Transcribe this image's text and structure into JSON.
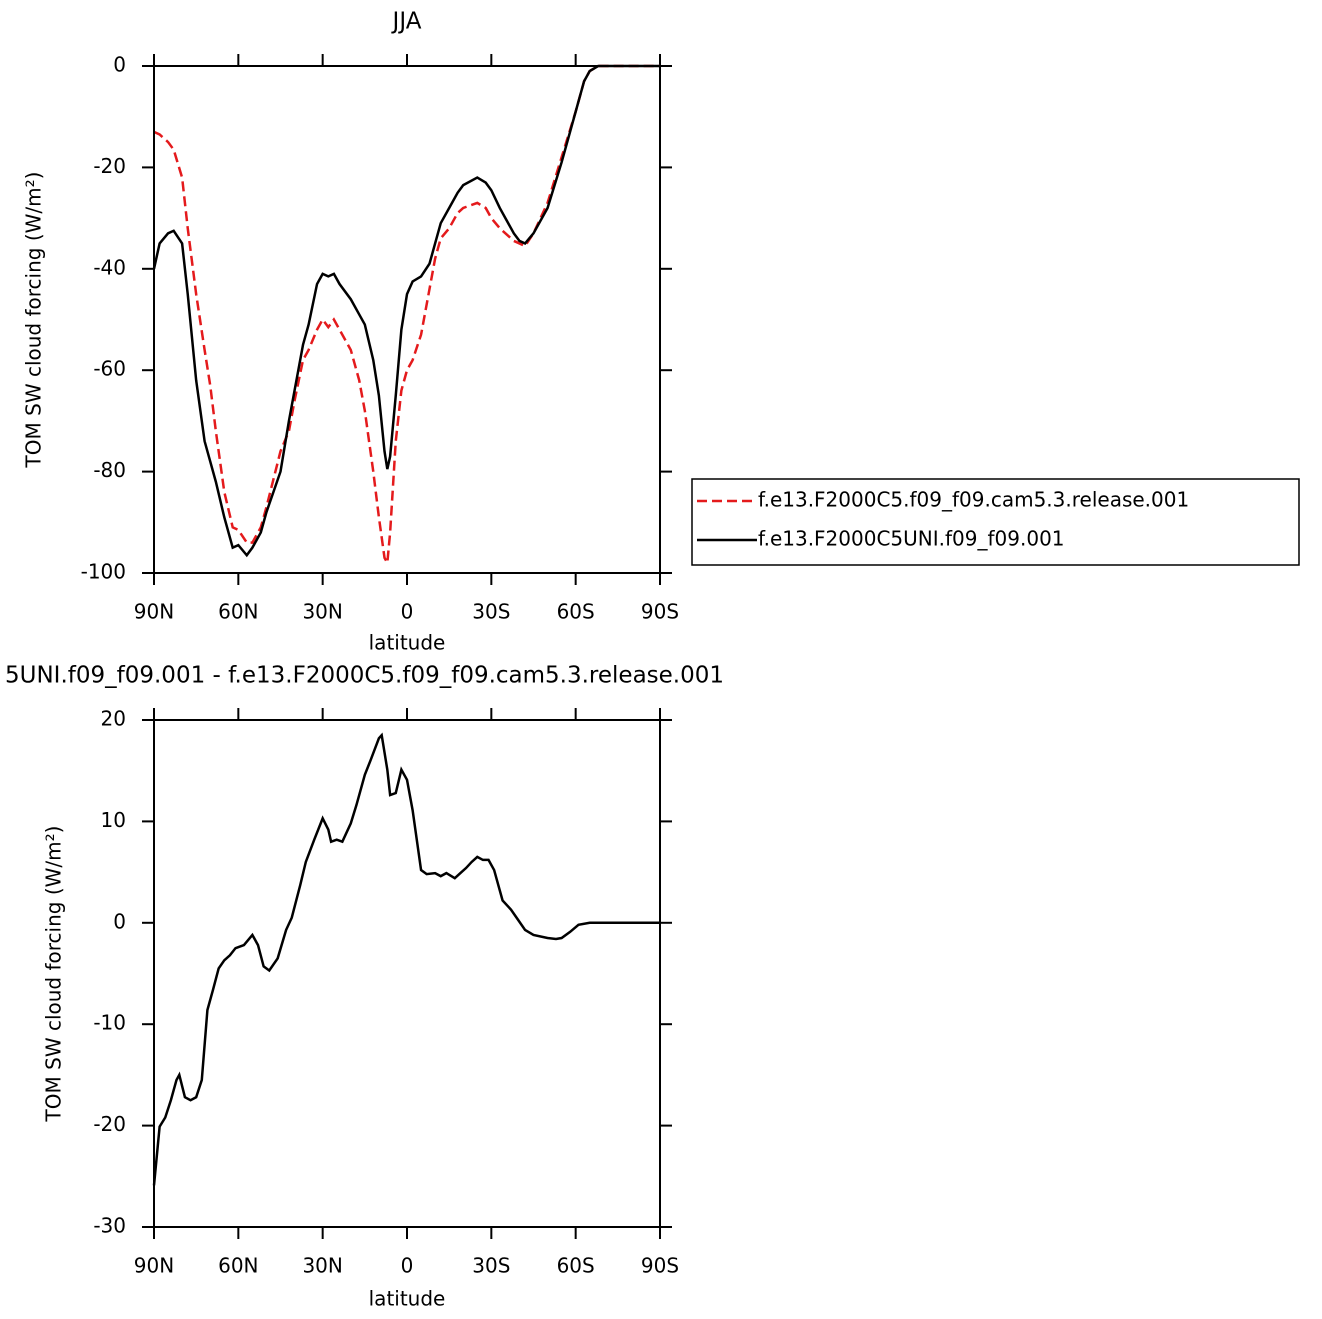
{
  "chart_data": [
    {
      "type": "line",
      "title": "JJA",
      "xlabel": "latitude",
      "ylabel": "TOM SW cloud forcing (W/m²)",
      "x": [
        90,
        88,
        85,
        83,
        80,
        78,
        75,
        72,
        70,
        68,
        65,
        62,
        60,
        57,
        55,
        52,
        50,
        45,
        42,
        40,
        37,
        35,
        32,
        30,
        28,
        26,
        24,
        20,
        17,
        15,
        12,
        10,
        8,
        7,
        6,
        4,
        2,
        0,
        -2,
        -5,
        -8,
        -10,
        -12,
        -15,
        -18,
        -20,
        -25,
        -28,
        -30,
        -33,
        -35,
        -38,
        -40,
        -42,
        -45,
        -50,
        -55,
        -60,
        -63,
        -65,
        -68,
        -70,
        -90
      ],
      "series": [
        {
          "name": "f.e13.F2000C5.f09_f09.cam5.3.release.001",
          "color": "#e41a1c",
          "linestyle": "dashed",
          "values": [
            -13,
            -13.5,
            -15,
            -16.5,
            -22,
            -32,
            -45,
            -56,
            -63,
            -72,
            -84,
            -91,
            -91.5,
            -94,
            -94,
            -91,
            -87,
            -76,
            -72,
            -66,
            -58,
            -56,
            -52,
            -50,
            -51.5,
            -50,
            -52,
            -56,
            -62,
            -68,
            -80,
            -89,
            -97,
            -98,
            -92,
            -74,
            -64,
            -60,
            -58,
            -53,
            -44,
            -38,
            -34,
            -32,
            -29,
            -28,
            -27,
            -28,
            -30,
            -32,
            -33,
            -34.5,
            -35,
            -35.5,
            -33,
            -27,
            -18,
            -9,
            -3,
            -1,
            0,
            0,
            0
          ]
        },
        {
          "name": "f.e13.F2000C5UNI.f09_f09.001",
          "color": "#000000",
          "linestyle": "solid",
          "values": [
            -40,
            -35,
            -33,
            -32.5,
            -35,
            -45,
            -62,
            -74,
            -78,
            -82,
            -89,
            -95,
            -94.5,
            -96.5,
            -95,
            -92,
            -88,
            -80,
            -70,
            -64,
            -55,
            -51,
            -43,
            -41,
            -41.5,
            -41,
            -43,
            -46,
            -49,
            -51,
            -58,
            -65,
            -76,
            -79.5,
            -77,
            -65,
            -52,
            -45,
            -42.5,
            -41.5,
            -39,
            -35,
            -31,
            -28,
            -25,
            -23.5,
            -22,
            -23,
            -24.5,
            -28,
            -30,
            -33,
            -34.5,
            -35,
            -33,
            -28,
            -19,
            -9,
            -3,
            -1,
            0,
            0,
            0
          ]
        }
      ],
      "xlim": [
        90,
        -90
      ],
      "xticks": [
        {
          "value": 90,
          "label": "90N"
        },
        {
          "value": 60,
          "label": "60N"
        },
        {
          "value": 30,
          "label": "30N"
        },
        0,
        {
          "value": -30,
          "label": "30S"
        },
        {
          "value": -60,
          "label": "60S"
        },
        {
          "value": -90,
          "label": "90S"
        }
      ],
      "ylim": [
        -100,
        0
      ],
      "yticks": [
        -100,
        -80,
        -60,
        -40,
        -20,
        0
      ],
      "legend": "right"
    },
    {
      "type": "line",
      "title": "5UNI.f09_f09.001 - f.e13.F2000C5.f09_f09.cam5.3.release.001",
      "xlabel": "latitude",
      "ylabel": "TOM SW cloud forcing (W/m²)",
      "x": [
        90,
        88,
        86,
        84,
        82,
        81,
        79,
        77,
        75,
        73,
        71,
        69,
        67,
        65,
        63,
        61,
        58,
        55,
        53,
        51,
        49,
        46,
        43,
        41,
        38,
        36,
        33,
        30,
        28,
        27,
        25,
        23,
        20,
        18,
        15,
        13,
        10,
        9,
        7,
        6,
        4,
        2,
        0,
        -2,
        -5,
        -7,
        -10,
        -12,
        -14,
        -17,
        -19,
        -21,
        -23,
        -25,
        -27,
        -29,
        -31,
        -34,
        -37,
        -39,
        -42,
        -45,
        -50,
        -53,
        -55,
        -58,
        -61,
        -65,
        -90
      ],
      "series": [
        {
          "color": "#000000",
          "linestyle": "solid",
          "values": [
            -25.9,
            -20.1,
            -19.2,
            -17.5,
            -15.5,
            -15,
            -17.2,
            -17.5,
            -17.2,
            -15.5,
            -8.6,
            -6.6,
            -4.5,
            -3.7,
            -3.2,
            -2.5,
            -2.2,
            -1.2,
            -2.2,
            -4.3,
            -4.7,
            -3.5,
            -0.7,
            0.5,
            3.7,
            6,
            8.2,
            10.3,
            9.2,
            8,
            8.2,
            8,
            9.8,
            11.6,
            14.6,
            16,
            18.2,
            18.5,
            15.1,
            12.6,
            12.8,
            15.1,
            14.1,
            11.1,
            5.2,
            4.8,
            4.9,
            4.6,
            4.9,
            4.4,
            4.9,
            5.4,
            6,
            6.5,
            6.2,
            6.2,
            5.2,
            2.2,
            1.3,
            0.5,
            -0.7,
            -1.2,
            -1.5,
            -1.6,
            -1.5,
            -0.9,
            -0.2,
            0,
            0
          ]
        }
      ],
      "xlim": [
        90,
        -90
      ],
      "xticks": [
        {
          "value": 90,
          "label": "90N"
        },
        {
          "value": 60,
          "label": "60N"
        },
        {
          "value": 30,
          "label": "30N"
        },
        0,
        {
          "value": -30,
          "label": "30S"
        },
        {
          "value": -60,
          "label": "60S"
        },
        {
          "value": -90,
          "label": "90S"
        }
      ],
      "ylim": [
        -30,
        20
      ],
      "yticks": [
        -30,
        -20,
        -10,
        0,
        10,
        20
      ]
    }
  ]
}
